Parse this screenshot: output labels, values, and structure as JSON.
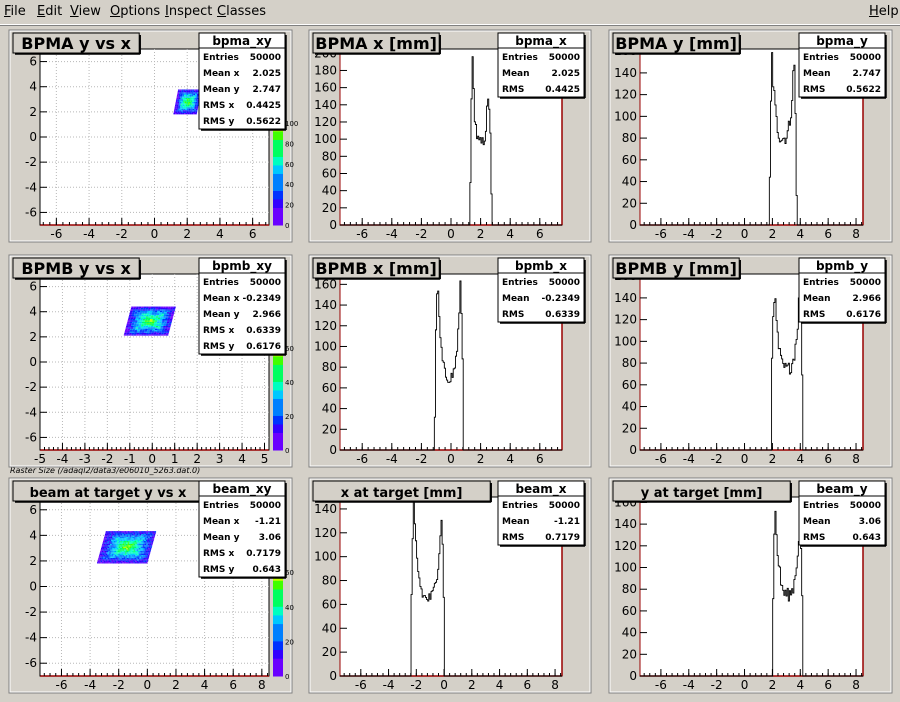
{
  "menu": {
    "items": [
      {
        "u": "F",
        "rest": "ile"
      },
      {
        "u": "E",
        "rest": "dit"
      },
      {
        "u": "V",
        "rest": "iew"
      },
      {
        "u": "O",
        "rest": "ptions"
      },
      {
        "u": "I",
        "rest": "nspect"
      },
      {
        "u": "C",
        "rest": "lasses"
      }
    ],
    "help": {
      "u": "H",
      "rest": "elp"
    }
  },
  "caption": "Raster Size (/adaql2/data3/e06010_5263.dat.0)",
  "colors": {
    "canvas_bg": "#d4d0c8",
    "frame_white": "#ffffff",
    "axis_red": "#990000",
    "hist_line": "#000000",
    "grid": "#b8b8b8",
    "palette": [
      "#6a00ff",
      "#3300ff",
      "#0033ff",
      "#0080ff",
      "#00c8ff",
      "#00ffc0",
      "#00ff60",
      "#40ff00",
      "#c0ff00"
    ]
  },
  "chart_data": [
    {
      "type": "heatmap",
      "id": "bpma_xy",
      "title": "BPMA y vs x",
      "xlim": [
        -7,
        7
      ],
      "ylim": [
        -7,
        7
      ],
      "xticks": [
        -6,
        -4,
        -2,
        0,
        2,
        4,
        6
      ],
      "yticks": [
        -6,
        -4,
        -2,
        0,
        2,
        4,
        6
      ],
      "grid": true,
      "cluster": {
        "x_range": [
          1.3,
          2.7
        ],
        "y_range": [
          1.8,
          3.7
        ],
        "skew": 0.15
      },
      "stats": {
        "name": "bpma_xy",
        "rows": [
          [
            "Entries",
            "50000"
          ],
          [
            "Mean x",
            "2.025"
          ],
          [
            "Mean y",
            "2.747"
          ],
          [
            "RMS x",
            "0.4425"
          ],
          [
            "RMS y",
            "0.5622"
          ]
        ]
      },
      "palette_ticks": [
        "100",
        "80",
        "60",
        "40",
        "20",
        "0"
      ]
    },
    {
      "type": "histogram",
      "id": "bpma_x",
      "title": "BPMA x [mm]",
      "xlim": [
        -7.5,
        7.5
      ],
      "ylim": [
        0,
        205
      ],
      "xticks": [
        -6,
        -4,
        -2,
        0,
        2,
        4,
        6
      ],
      "yticks": [
        0,
        20,
        40,
        60,
        80,
        100,
        120,
        140,
        160,
        180,
        200
      ],
      "shape": {
        "lo": 1.3,
        "hi": 2.75,
        "left_peak": 200,
        "right_peak": 140,
        "valley": 95
      },
      "stats": {
        "name": "bpma_x",
        "rows": [
          [
            "Entries",
            "50000"
          ],
          [
            "Mean",
            "2.025"
          ],
          [
            "RMS",
            "0.4425"
          ]
        ]
      }
    },
    {
      "type": "histogram",
      "id": "bpma_y",
      "title": "BPMA y [mm]",
      "xlim": [
        -7.5,
        8.5
      ],
      "ylim": [
        0,
        162
      ],
      "xticks": [
        -6,
        -4,
        -2,
        0,
        2,
        4,
        6,
        8
      ],
      "yticks": [
        0,
        20,
        40,
        60,
        80,
        100,
        120,
        140,
        160
      ],
      "shape": {
        "lo": 1.8,
        "hi": 3.75,
        "left_peak": 155,
        "right_peak": 150,
        "valley": 80
      },
      "stats": {
        "name": "bpma_y",
        "rows": [
          [
            "Entries",
            "50000"
          ],
          [
            "Mean",
            "2.747"
          ],
          [
            "RMS",
            "0.5622"
          ]
        ]
      }
    },
    {
      "type": "heatmap",
      "id": "bpmb_xy",
      "title": "BPMB y vs x",
      "xlim": [
        -5,
        5.2
      ],
      "ylim": [
        -7,
        7
      ],
      "xticks": [
        -5,
        -4,
        -3,
        -2,
        -1,
        0,
        1,
        2,
        3,
        4,
        5
      ],
      "yticks": [
        -6,
        -4,
        -2,
        0,
        2,
        4,
        6
      ],
      "grid": true,
      "cluster": {
        "x_range": [
          -1.1,
          0.8
        ],
        "y_range": [
          2.1,
          4.3
        ],
        "skew": 0.15
      },
      "stats": {
        "name": "bpmb_xy",
        "rows": [
          [
            "Entries",
            "50000"
          ],
          [
            "Mean x",
            "-0.2349"
          ],
          [
            "Mean y",
            "2.966"
          ],
          [
            "RMS x",
            "0.6339"
          ],
          [
            "RMS y",
            "0.6176"
          ]
        ]
      },
      "palette_ticks": [
        "60",
        "40",
        "20",
        "0"
      ]
    },
    {
      "type": "histogram",
      "id": "bpmb_x",
      "title": "BPMB x [mm]",
      "xlim": [
        -7.5,
        7.5
      ],
      "ylim": [
        0,
        170
      ],
      "xticks": [
        -6,
        -4,
        -2,
        0,
        2,
        4,
        6
      ],
      "yticks": [
        0,
        20,
        40,
        60,
        80,
        100,
        120,
        140,
        160
      ],
      "shape": {
        "lo": -1.1,
        "hi": 0.85,
        "left_peak": 165,
        "right_peak": 160,
        "valley": 70
      },
      "stats": {
        "name": "bpmb_x",
        "rows": [
          [
            "Entries",
            "50000"
          ],
          [
            "Mean",
            "-0.2349"
          ],
          [
            "RMS",
            "0.6339"
          ]
        ]
      }
    },
    {
      "type": "histogram",
      "id": "bpmb_y",
      "title": "BPMB y [mm]",
      "xlim": [
        -7.5,
        8.5
      ],
      "ylim": [
        0,
        162
      ],
      "xticks": [
        -6,
        -4,
        -2,
        0,
        2,
        4,
        6,
        8
      ],
      "yticks": [
        0,
        20,
        40,
        60,
        80,
        100,
        120,
        140,
        160
      ],
      "shape": {
        "lo": 1.9,
        "hi": 4.2,
        "left_peak": 150,
        "right_peak": 155,
        "valley": 75
      },
      "stats": {
        "name": "bpmb_y",
        "rows": [
          [
            "Entries",
            "50000"
          ],
          [
            "Mean",
            "2.966"
          ],
          [
            "RMS",
            "0.6176"
          ]
        ]
      }
    },
    {
      "type": "heatmap",
      "id": "beam_xy",
      "title": "beam at target y vs x",
      "xlim": [
        -7.5,
        8.5
      ],
      "ylim": [
        -7,
        7
      ],
      "xticks": [
        -6,
        -4,
        -2,
        0,
        2,
        4,
        6,
        8
      ],
      "yticks": [
        -6,
        -4,
        -2,
        0,
        2,
        4,
        6
      ],
      "grid": true,
      "cluster": {
        "x_range": [
          -3.2,
          0.3
        ],
        "y_range": [
          1.8,
          4.3
        ],
        "skew": 0.25
      },
      "stats": {
        "name": "beam_xy",
        "rows": [
          [
            "Entries",
            "50000"
          ],
          [
            "Mean x",
            "-1.21"
          ],
          [
            "Mean y",
            "3.06"
          ],
          [
            "RMS x",
            "0.7179"
          ],
          [
            "RMS y",
            "0.643"
          ]
        ]
      },
      "palette_ticks": [
        "60",
        "40",
        "20",
        "0"
      ]
    },
    {
      "type": "histogram",
      "id": "beam_x",
      "title": "x at target [mm]",
      "xlim": [
        -7.5,
        8.5
      ],
      "ylim": [
        0,
        150
      ],
      "xticks": [
        -6,
        -4,
        -2,
        0,
        2,
        4,
        6,
        8
      ],
      "yticks": [
        0,
        20,
        40,
        60,
        80,
        100,
        120,
        140
      ],
      "shape": {
        "lo": -2.4,
        "hi": 0.05,
        "left_peak": 140,
        "right_peak": 135,
        "valley": 65
      },
      "stats": {
        "name": "beam_x",
        "rows": [
          [
            "Entries",
            "50000"
          ],
          [
            "Mean",
            "-1.21"
          ],
          [
            "RMS",
            "0.7179"
          ]
        ]
      }
    },
    {
      "type": "histogram",
      "id": "beam_y",
      "title": "y at target [mm]",
      "xlim": [
        -7.5,
        8.5
      ],
      "ylim": [
        0,
        165
      ],
      "xticks": [
        -6,
        -4,
        -2,
        0,
        2,
        4,
        6,
        8
      ],
      "yticks": [
        0,
        20,
        40,
        60,
        80,
        100,
        120,
        140,
        160
      ],
      "shape": {
        "lo": 2.0,
        "hi": 4.2,
        "left_peak": 155,
        "right_peak": 150,
        "valley": 75
      },
      "stats": {
        "name": "beam_y",
        "rows": [
          [
            "Entries",
            "50000"
          ],
          [
            "Mean",
            "3.06"
          ],
          [
            "RMS",
            "0.643"
          ]
        ]
      }
    }
  ]
}
